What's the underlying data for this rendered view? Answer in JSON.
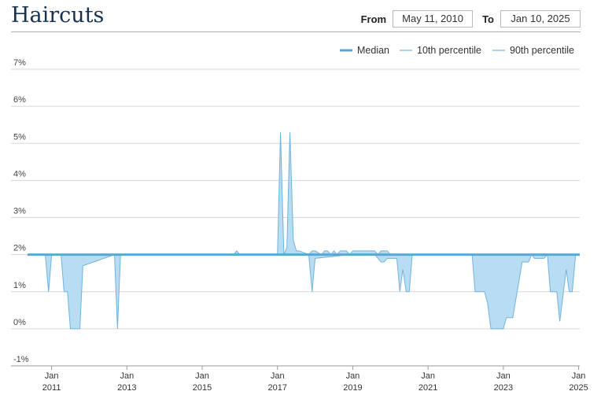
{
  "header": {
    "title": "Haircuts",
    "from_label": "From",
    "from_value": "May 11, 2010",
    "to_label": "To",
    "to_value": "Jan 10, 2025"
  },
  "colors": {
    "line": "#5ba8d6",
    "band_fill": "#b8dcf2",
    "band_stroke": "#6fb4de",
    "grid": "#d6d6d6",
    "axis": "#9a9a9a"
  },
  "chart_data": {
    "type": "line",
    "title": "Haircuts",
    "legend": [
      "Median",
      "10th percentile",
      "90th percentile"
    ],
    "legend_position": "top-right",
    "grid": true,
    "xlim": [
      2010.36,
      2025.03
    ],
    "ylim": [
      -1,
      7
    ],
    "y_ticks": [
      -1,
      0,
      1,
      2,
      3,
      4,
      5,
      6,
      7
    ],
    "y_tick_labels": [
      "-1%",
      "0%",
      "1%",
      "2%",
      "3%",
      "4%",
      "5%",
      "6%",
      "7%"
    ],
    "x_ticks": [
      2011,
      2013,
      2015,
      2017,
      2019,
      2021,
      2023,
      2025
    ],
    "x_tick_labels": [
      [
        "Jan",
        "2011"
      ],
      [
        "Jan",
        "2013"
      ],
      [
        "Jan",
        "2015"
      ],
      [
        "Jan",
        "2017"
      ],
      [
        "Jan",
        "2019"
      ],
      [
        "Jan",
        "2021"
      ],
      [
        "Jan",
        "2023"
      ],
      [
        "Jan",
        "2025"
      ]
    ],
    "series": [
      {
        "name": "Median",
        "x": [
          2010.36,
          2025.03
        ],
        "y": [
          2.0,
          2.0
        ]
      },
      {
        "name": "10th percentile",
        "x": [
          2010.36,
          2010.75,
          2010.83,
          2010.92,
          2011.0,
          2011.25,
          2011.33,
          2011.42,
          2011.5,
          2011.75,
          2011.83,
          2012.67,
          2012.75,
          2012.83,
          2016.92,
          2017.0,
          2017.17,
          2017.33,
          2017.58,
          2017.83,
          2017.92,
          2018.0,
          2018.92,
          2019.58,
          2019.67,
          2019.75,
          2019.83,
          2019.92,
          2020.0,
          2020.08,
          2020.17,
          2020.25,
          2020.33,
          2020.42,
          2020.5,
          2020.58,
          2022.17,
          2022.25,
          2022.5,
          2022.58,
          2022.67,
          2022.75,
          2023.0,
          2023.08,
          2023.17,
          2023.25,
          2023.5,
          2023.67,
          2023.75,
          2023.83,
          2024.08,
          2024.17,
          2024.25,
          2024.33,
          2024.42,
          2024.5,
          2024.67,
          2024.75,
          2024.83,
          2024.92,
          2025.03
        ],
        "y": [
          2.0,
          2.0,
          2.0,
          1.0,
          2.0,
          2.0,
          1.0,
          1.0,
          0.0,
          0.0,
          1.7,
          2.0,
          0.0,
          2.0,
          2.0,
          2.0,
          2.0,
          2.0,
          2.0,
          2.0,
          1.0,
          1.9,
          2.0,
          2.0,
          1.9,
          1.8,
          1.8,
          1.9,
          1.9,
          1.9,
          1.9,
          1.0,
          1.6,
          1.0,
          1.0,
          2.0,
          2.0,
          1.0,
          1.0,
          0.7,
          0.0,
          0.0,
          0.0,
          0.3,
          0.3,
          0.3,
          1.8,
          1.8,
          2.0,
          1.9,
          1.9,
          2.0,
          1.0,
          1.0,
          1.0,
          0.2,
          1.6,
          1.0,
          1.0,
          2.0,
          2.0
        ]
      },
      {
        "name": "90th percentile",
        "x": [
          2010.36,
          2015.83,
          2015.92,
          2016.0,
          2016.92,
          2017.0,
          2017.08,
          2017.17,
          2017.25,
          2017.33,
          2017.42,
          2017.5,
          2017.58,
          2017.83,
          2017.92,
          2018.0,
          2018.17,
          2018.25,
          2018.33,
          2018.42,
          2018.5,
          2018.58,
          2018.67,
          2018.83,
          2018.92,
          2019.0,
          2019.08,
          2019.17,
          2019.58,
          2019.67,
          2019.75,
          2019.92,
          2020.0,
          2020.08,
          2025.03
        ],
        "y": [
          2.0,
          2.0,
          2.1,
          2.0,
          2.0,
          2.0,
          5.3,
          2.0,
          2.2,
          5.3,
          2.4,
          2.1,
          2.1,
          2.0,
          2.1,
          2.1,
          2.0,
          2.1,
          2.1,
          2.0,
          2.1,
          2.0,
          2.1,
          2.1,
          2.0,
          2.1,
          2.1,
          2.1,
          2.1,
          2.0,
          2.1,
          2.1,
          2.0,
          2.0,
          2.0
        ]
      }
    ]
  }
}
